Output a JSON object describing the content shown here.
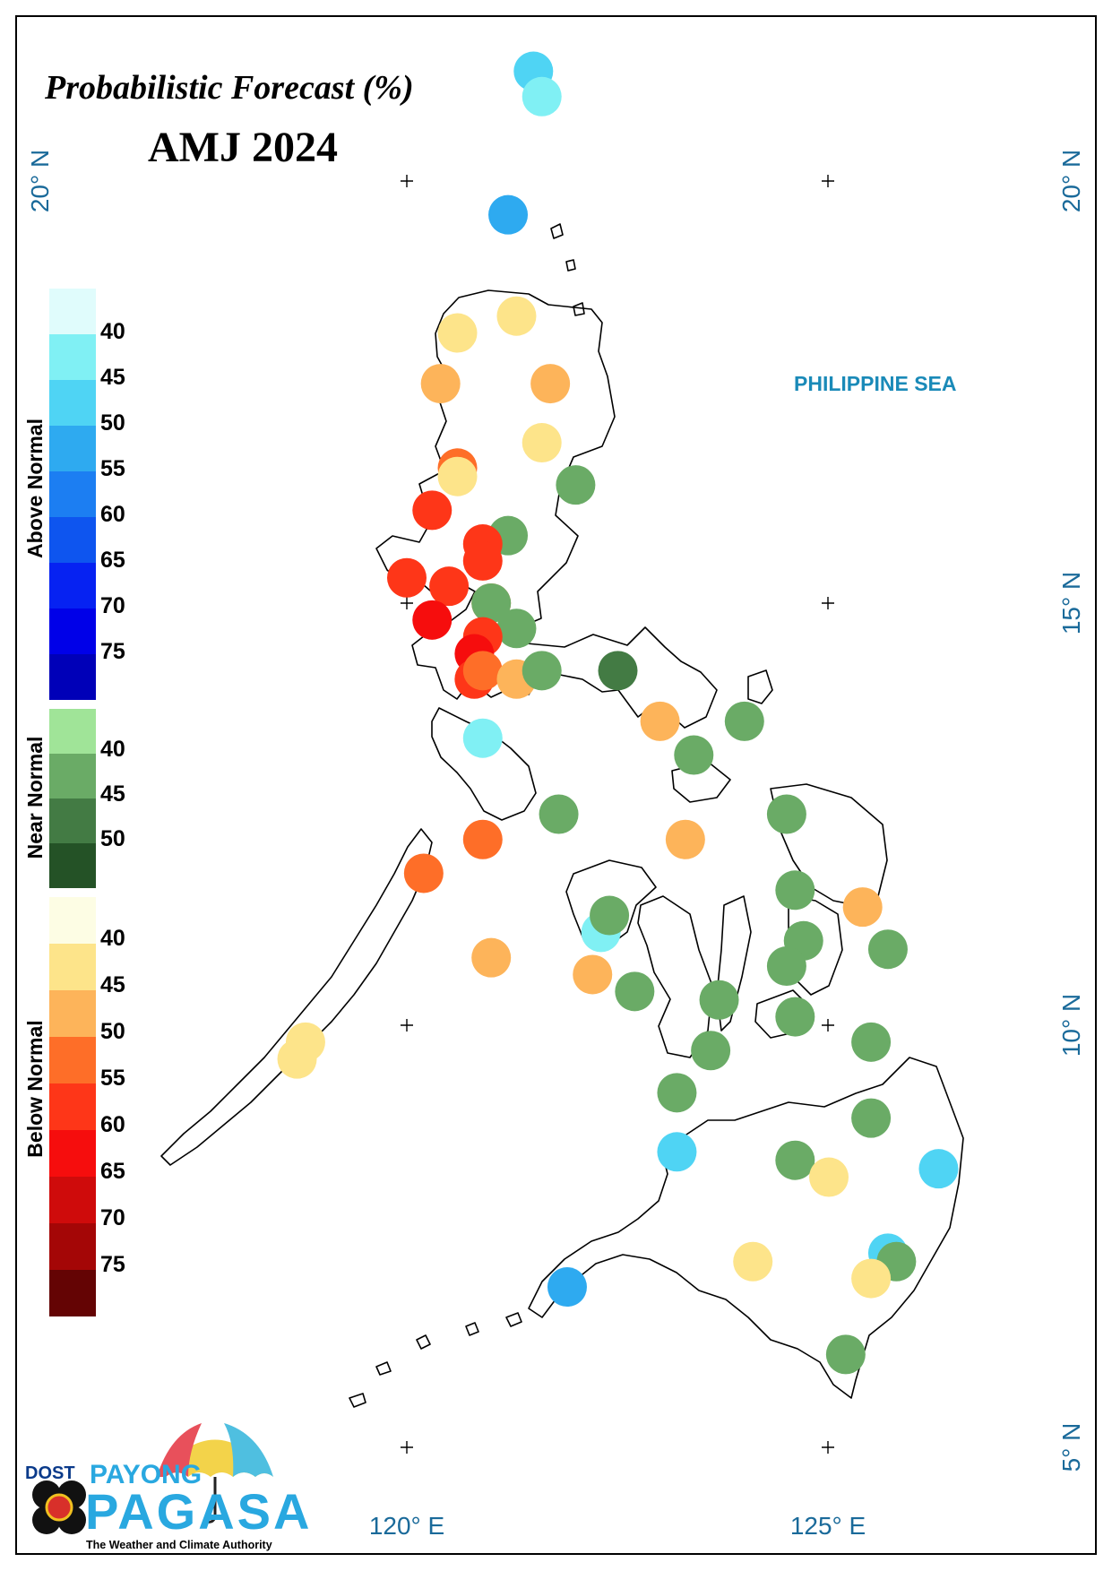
{
  "title": "Probabilistic Forecast (%)",
  "period": "AMJ 2024",
  "sea_label": "PHILIPPINE SEA",
  "lat_labels": [
    "20° N",
    "15° N",
    "10° N",
    "5° N"
  ],
  "lon_labels": [
    "120° E",
    "125° E"
  ],
  "legend": {
    "above": {
      "label": "Above Normal",
      "ticks": [
        "40",
        "45",
        "50",
        "55",
        "60",
        "65",
        "70",
        "75"
      ],
      "colors": [
        "#e0fcfc",
        "#80f0f4",
        "#4fd4f4",
        "#2eaaf0",
        "#1c7ef2",
        "#0e55ef",
        "#0622f2",
        "#0000e8",
        "#0000b8"
      ]
    },
    "near": {
      "label": "Near Normal",
      "ticks": [
        "40",
        "45",
        "50"
      ],
      "colors": [
        "#a0e498",
        "#6aab66",
        "#437b44",
        "#245226"
      ]
    },
    "below": {
      "label": "Below Normal",
      "ticks": [
        "40",
        "45",
        "50",
        "55",
        "60",
        "65",
        "70",
        "75"
      ],
      "colors": [
        "#fdfde4",
        "#fde48a",
        "#fdb45a",
        "#fe6e28",
        "#fe3618",
        "#f60d0d",
        "#cf0b0b",
        "#a40606",
        "#640404"
      ]
    }
  },
  "stations": [
    {
      "lon": 121.5,
      "lat": 21.3,
      "cat": "above",
      "p": 45
    },
    {
      "lon": 121.6,
      "lat": 21.0,
      "cat": "above",
      "p": 40
    },
    {
      "lon": 121.2,
      "lat": 19.6,
      "cat": "above",
      "p": 50
    },
    {
      "lon": 121.3,
      "lat": 18.4,
      "cat": "below",
      "p": 40
    },
    {
      "lon": 120.6,
      "lat": 18.2,
      "cat": "below",
      "p": 40
    },
    {
      "lon": 120.4,
      "lat": 17.6,
      "cat": "below",
      "p": 45
    },
    {
      "lon": 121.7,
      "lat": 17.6,
      "cat": "below",
      "p": 45
    },
    {
      "lon": 121.6,
      "lat": 16.9,
      "cat": "below",
      "p": 40
    },
    {
      "lon": 120.6,
      "lat": 16.6,
      "cat": "below",
      "p": 50
    },
    {
      "lon": 120.6,
      "lat": 16.5,
      "cat": "below",
      "p": 40
    },
    {
      "lon": 120.3,
      "lat": 16.1,
      "cat": "below",
      "p": 55
    },
    {
      "lon": 122.0,
      "lat": 16.4,
      "cat": "near",
      "p": 40
    },
    {
      "lon": 121.2,
      "lat": 15.8,
      "cat": "near",
      "p": 40
    },
    {
      "lon": 120.9,
      "lat": 15.7,
      "cat": "below",
      "p": 55
    },
    {
      "lon": 120.9,
      "lat": 15.5,
      "cat": "below",
      "p": 55
    },
    {
      "lon": 120.0,
      "lat": 15.3,
      "cat": "below",
      "p": 55
    },
    {
      "lon": 120.5,
      "lat": 15.2,
      "cat": "below",
      "p": 55
    },
    {
      "lon": 121.0,
      "lat": 15.0,
      "cat": "below",
      "p": 50
    },
    {
      "lon": 121.0,
      "lat": 15.0,
      "cat": "near",
      "p": 40
    },
    {
      "lon": 120.3,
      "lat": 14.8,
      "cat": "below",
      "p": 60
    },
    {
      "lon": 121.3,
      "lat": 14.7,
      "cat": "near",
      "p": 40
    },
    {
      "lon": 120.9,
      "lat": 14.6,
      "cat": "below",
      "p": 55
    },
    {
      "lon": 120.8,
      "lat": 14.4,
      "cat": "below",
      "p": 60
    },
    {
      "lon": 120.8,
      "lat": 14.1,
      "cat": "below",
      "p": 55
    },
    {
      "lon": 120.9,
      "lat": 14.2,
      "cat": "below",
      "p": 50
    },
    {
      "lon": 121.3,
      "lat": 14.1,
      "cat": "below",
      "p": 45
    },
    {
      "lon": 121.6,
      "lat": 14.2,
      "cat": "near",
      "p": 40
    },
    {
      "lon": 122.5,
      "lat": 14.2,
      "cat": "near",
      "p": 45
    },
    {
      "lon": 123.0,
      "lat": 13.6,
      "cat": "below",
      "p": 45
    },
    {
      "lon": 124.0,
      "lat": 13.6,
      "cat": "near",
      "p": 40
    },
    {
      "lon": 123.4,
      "lat": 13.2,
      "cat": "near",
      "p": 40
    },
    {
      "lon": 120.9,
      "lat": 13.4,
      "cat": "above",
      "p": 40
    },
    {
      "lon": 121.8,
      "lat": 12.5,
      "cat": "near",
      "p": 40
    },
    {
      "lon": 124.5,
      "lat": 12.5,
      "cat": "near",
      "p": 40
    },
    {
      "lon": 120.9,
      "lat": 12.2,
      "cat": "below",
      "p": 50
    },
    {
      "lon": 123.3,
      "lat": 12.2,
      "cat": "below",
      "p": 45
    },
    {
      "lon": 120.2,
      "lat": 11.8,
      "cat": "below",
      "p": 50
    },
    {
      "lon": 124.6,
      "lat": 11.6,
      "cat": "near",
      "p": 40
    },
    {
      "lon": 125.4,
      "lat": 11.4,
      "cat": "below",
      "p": 45
    },
    {
      "lon": 122.3,
      "lat": 11.1,
      "cat": "above",
      "p": 40
    },
    {
      "lon": 122.4,
      "lat": 11.3,
      "cat": "near",
      "p": 40
    },
    {
      "lon": 124.7,
      "lat": 11.0,
      "cat": "near",
      "p": 40
    },
    {
      "lon": 125.7,
      "lat": 10.9,
      "cat": "near",
      "p": 40
    },
    {
      "lon": 121.0,
      "lat": 10.8,
      "cat": "below",
      "p": 45
    },
    {
      "lon": 122.2,
      "lat": 10.6,
      "cat": "below",
      "p": 45
    },
    {
      "lon": 124.5,
      "lat": 10.7,
      "cat": "near",
      "p": 40
    },
    {
      "lon": 122.7,
      "lat": 10.4,
      "cat": "near",
      "p": 40
    },
    {
      "lon": 123.7,
      "lat": 10.3,
      "cat": "near",
      "p": 40
    },
    {
      "lon": 124.6,
      "lat": 10.1,
      "cat": "near",
      "p": 40
    },
    {
      "lon": 125.5,
      "lat": 9.8,
      "cat": "near",
      "p": 40
    },
    {
      "lon": 118.8,
      "lat": 9.8,
      "cat": "below",
      "p": 40
    },
    {
      "lon": 118.7,
      "lat": 9.6,
      "cat": "below",
      "p": 40
    },
    {
      "lon": 123.6,
      "lat": 9.7,
      "cat": "near",
      "p": 40
    },
    {
      "lon": 123.2,
      "lat": 9.2,
      "cat": "near",
      "p": 40
    },
    {
      "lon": 125.5,
      "lat": 8.9,
      "cat": "near",
      "p": 40
    },
    {
      "lon": 123.2,
      "lat": 8.5,
      "cat": "above",
      "p": 45
    },
    {
      "lon": 124.6,
      "lat": 8.4,
      "cat": "near",
      "p": 40
    },
    {
      "lon": 126.3,
      "lat": 8.3,
      "cat": "above",
      "p": 45
    },
    {
      "lon": 125.0,
      "lat": 8.2,
      "cat": "below",
      "p": 40
    },
    {
      "lon": 125.7,
      "lat": 7.3,
      "cat": "above",
      "p": 45
    },
    {
      "lon": 124.1,
      "lat": 7.2,
      "cat": "below",
      "p": 40
    },
    {
      "lon": 125.8,
      "lat": 7.2,
      "cat": "near",
      "p": 40
    },
    {
      "lon": 125.5,
      "lat": 7.0,
      "cat": "below",
      "p": 40
    },
    {
      "lon": 121.9,
      "lat": 6.9,
      "cat": "above",
      "p": 50
    },
    {
      "lon": 125.2,
      "lat": 6.1,
      "cat": "near",
      "p": 40
    }
  ],
  "logo": {
    "dost": "DOST",
    "payong": "PAYONG",
    "pagasa": "PAGASA",
    "tagline": "The Weather and Climate Authority"
  }
}
